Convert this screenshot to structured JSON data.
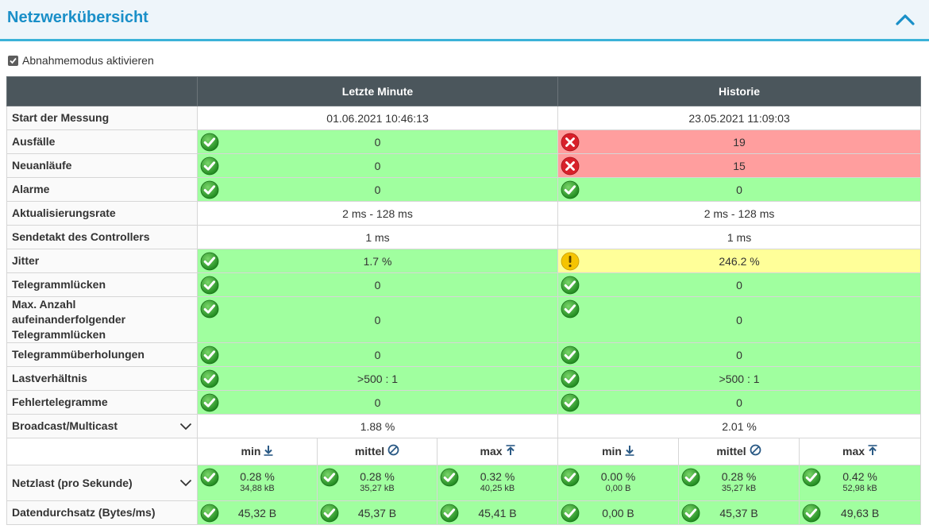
{
  "header": {
    "title": "Netzwerkübersicht",
    "collapse_icon": "chevron-up-icon"
  },
  "acceptance_mode": {
    "label": "Abnahmemodus aktivieren",
    "checked": true
  },
  "columns": {
    "current": "Letzte Minute",
    "history": "Historie"
  },
  "rows": {
    "start": {
      "label": "Start der Messung",
      "current": "01.06.2021 10:46:13",
      "history": "23.05.2021 11:09:03"
    },
    "failures": {
      "label": "Ausfälle",
      "current": "0",
      "history": "19"
    },
    "restarts": {
      "label": "Neuanläufe",
      "current": "0",
      "history": "15"
    },
    "alarms": {
      "label": "Alarme",
      "current": "0",
      "history": "0"
    },
    "update_rate": {
      "label": "Aktualisierungsrate",
      "current": "2 ms - 128 ms",
      "history": "2 ms - 128 ms"
    },
    "send_cycle": {
      "label": "Sendetakt des Controllers",
      "current": "1 ms",
      "history": "1 ms"
    },
    "jitter": {
      "label": "Jitter",
      "current": "1.7 %",
      "history": "246.2 %"
    },
    "gaps": {
      "label": "Telegrammlücken",
      "current": "0",
      "history": "0"
    },
    "max_gaps": {
      "label": "Max. Anzahl aufeinanderfolgender Telegrammlücken",
      "current": "0",
      "history": "0"
    },
    "overtakes": {
      "label": "Telegrammüberholungen",
      "current": "0",
      "history": "0"
    },
    "load_ratio": {
      "label": "Lastverhältnis",
      "current": ">500 : 1",
      "history": ">500 : 1"
    },
    "error_telegrams": {
      "label": "Fehlertelegramme",
      "current": "0",
      "history": "0"
    },
    "broadcast": {
      "label": "Broadcast/Multicast",
      "current": "1.88 %",
      "history": "2.01 %"
    }
  },
  "stats_header": {
    "min": "min",
    "avg": "mittel",
    "max": "max"
  },
  "net_load": {
    "label": "Netzlast (pro Sekunde)",
    "current": {
      "min": "0.28 %",
      "min_kb": "34,88 kB",
      "avg": "0.28 %",
      "avg_kb": "35,27 kB",
      "max": "0.32 %",
      "max_kb": "40,25 kB"
    },
    "history": {
      "min": "0.00 %",
      "min_kb": "0,00 B",
      "avg": "0.28 %",
      "avg_kb": "35,27 kB",
      "max": "0.42 %",
      "max_kb": "52,98 kB"
    }
  },
  "throughput": {
    "label": "Datendurchsatz (Bytes/ms)",
    "current": {
      "min": "45,32 B",
      "avg": "45,37 B",
      "max": "45,41 B"
    },
    "history": {
      "min": "0,00 B",
      "avg": "45,37 B",
      "max": "49,63 B"
    }
  },
  "colors": {
    "ok": "#a0ff9f",
    "error": "#ff9e9e",
    "warning": "#ffff99",
    "header": "#4b565c",
    "accent": "#1a8fc8"
  }
}
